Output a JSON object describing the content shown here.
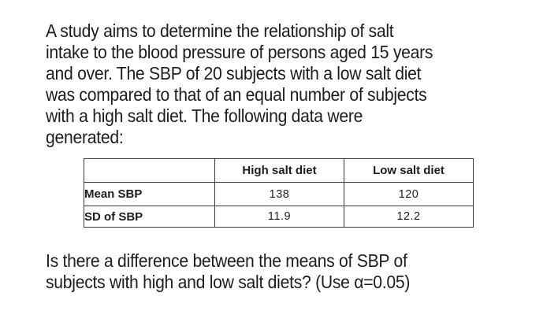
{
  "slide": {
    "background_color": "#ffffff",
    "text_color": "#1d1d1d",
    "table_border_color": "#3c3c3c",
    "intro_lines": [
      "A study aims to determine the relationship of salt",
      "intake to the blood pressure of persons aged 15 years",
      "and over. The SBP of 20 subjects with a low salt diet",
      "was compared to that of an equal number of subjects",
      "with a high salt diet. The following data were",
      "generated:"
    ],
    "table": {
      "header": {
        "label": "",
        "high": "High salt diet",
        "low": "Low salt diet"
      },
      "rows": [
        {
          "label": "Mean SBP",
          "high": "138",
          "low": "120"
        },
        {
          "label": "SD of SBP",
          "high": "11.9",
          "low": "12.2"
        }
      ]
    },
    "question_lines": [
      "Is there a difference between the means of SBP of",
      "subjects with high and low salt diets? (Use α=0.05)"
    ]
  }
}
